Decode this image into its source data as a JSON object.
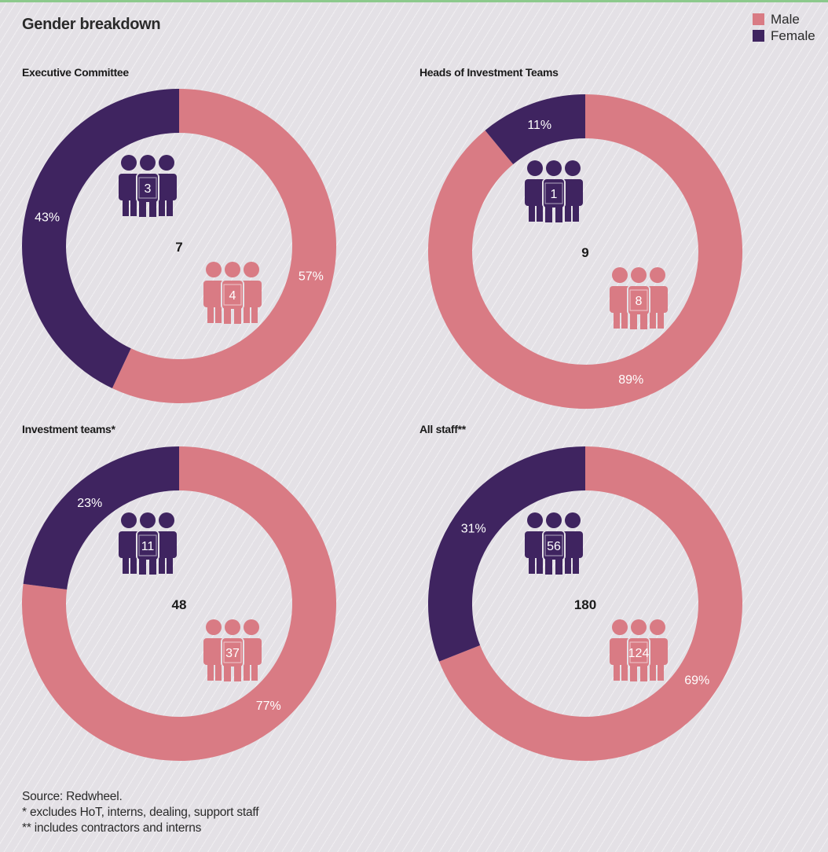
{
  "title": "Gender breakdown",
  "legend": [
    {
      "label": "Male",
      "color": "#d97b84"
    },
    {
      "label": "Female",
      "color": "#3f2460"
    }
  ],
  "colors": {
    "male": "#d97b84",
    "female": "#3f2460"
  },
  "chart_data": [
    {
      "type": "pie",
      "title": "Executive Committee",
      "total": "7",
      "slices": [
        {
          "name": "Male",
          "percent": 57,
          "label": "57%",
          "count": "4"
        },
        {
          "name": "Female",
          "percent": 43,
          "label": "43%",
          "count": "3"
        }
      ]
    },
    {
      "type": "pie",
      "title": "Heads of Investment Teams",
      "total": "9",
      "slices": [
        {
          "name": "Male",
          "percent": 89,
          "label": "89%",
          "count": "8"
        },
        {
          "name": "Female",
          "percent": 11,
          "label": "11%",
          "count": "1"
        }
      ]
    },
    {
      "type": "pie",
      "title": "Investment teams*",
      "total": "48",
      "slices": [
        {
          "name": "Male",
          "percent": 77,
          "label": "77%",
          "count": "37"
        },
        {
          "name": "Female",
          "percent": 23,
          "label": "23%",
          "count": "11"
        }
      ]
    },
    {
      "type": "pie",
      "title": "All staff**",
      "total": "180",
      "slices": [
        {
          "name": "Male",
          "percent": 69,
          "label": "69%",
          "count": "124"
        },
        {
          "name": "Female",
          "percent": 31,
          "label": "31%",
          "count": "56"
        }
      ]
    }
  ],
  "notes": {
    "source": "Source: Redwheel.",
    "note1": "* excludes HoT, interns, dealing, support staff",
    "note2": "** includes contractors and interns"
  }
}
